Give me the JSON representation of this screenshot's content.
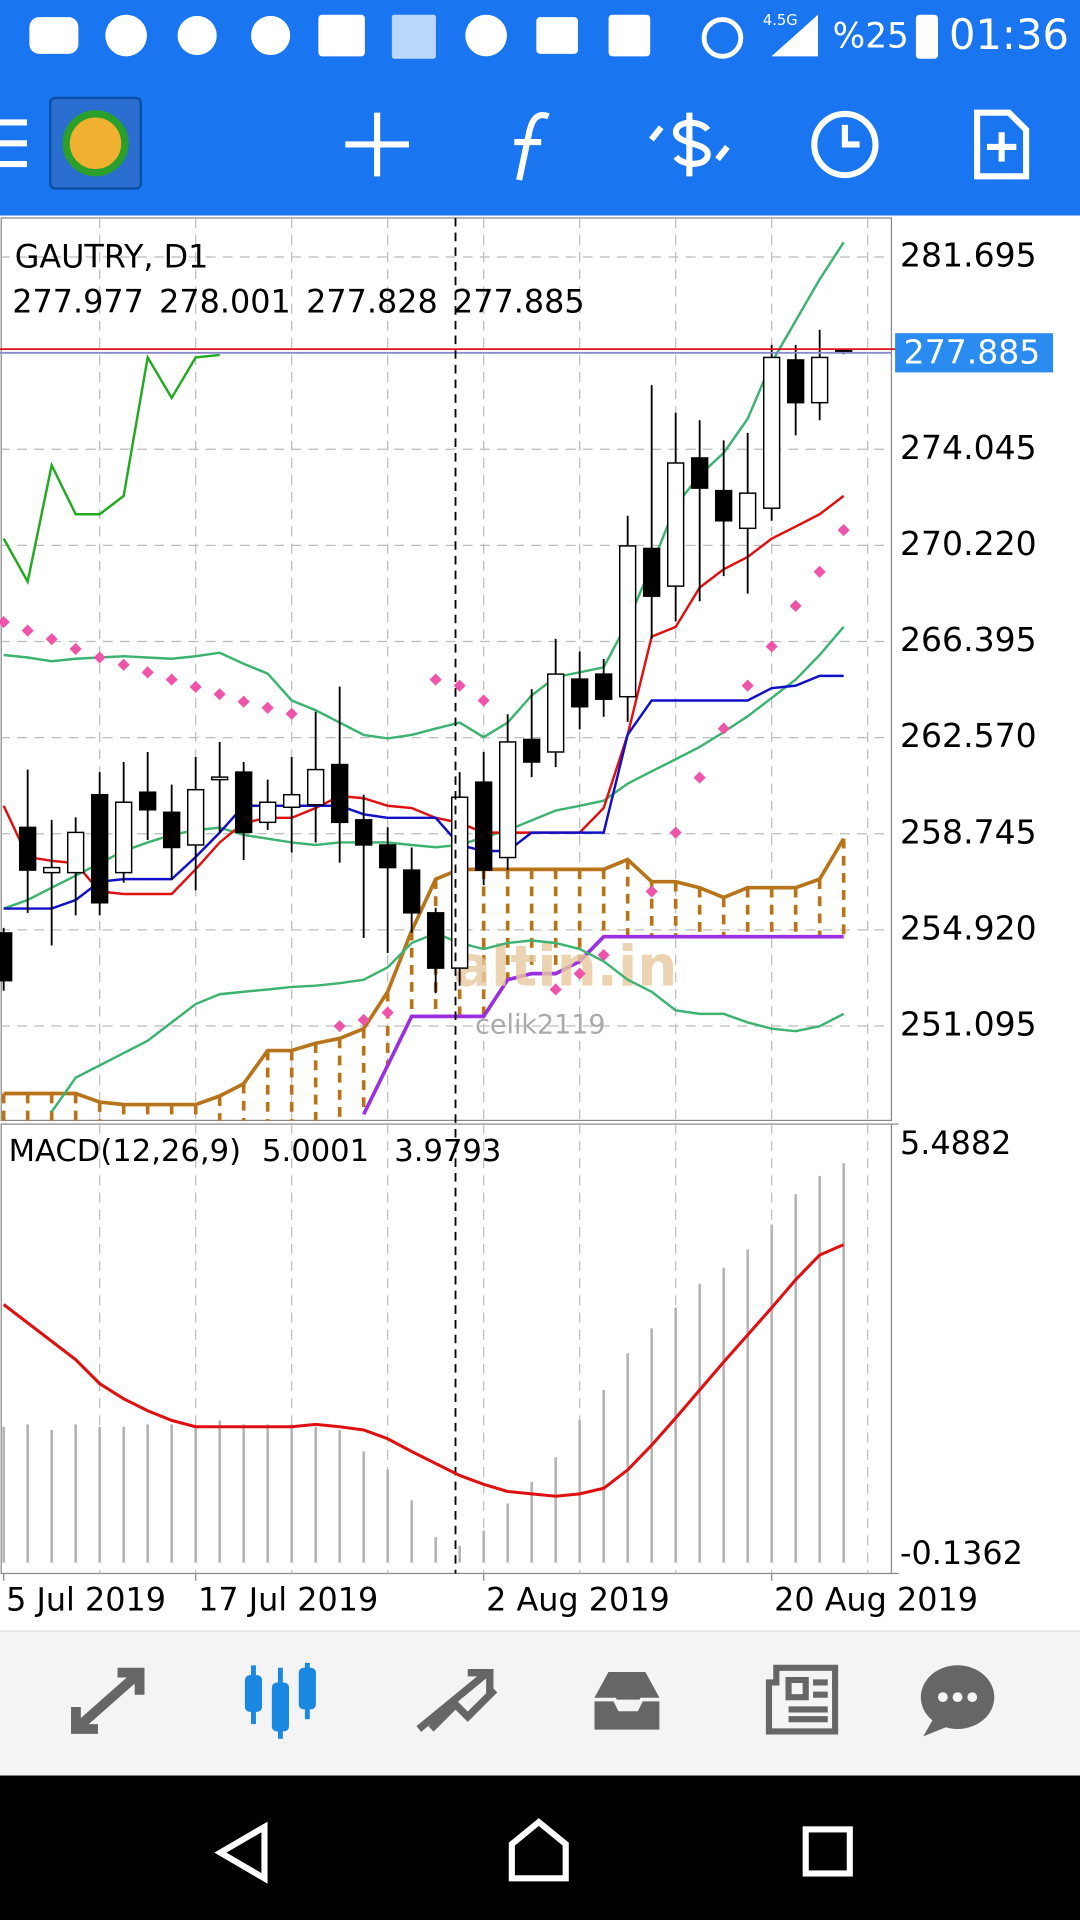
{
  "status_bar": {
    "network": "4.5G",
    "battery": "%25",
    "time": "01:36"
  },
  "chart": {
    "symbol": "GAUTRY, D1",
    "categories": [
      "5 Jul 2019",
      null,
      null,
      null,
      null,
      null,
      null,
      null,
      "17 Jul 2019",
      null,
      null,
      null,
      null,
      null,
      null,
      null,
      null,
      null,
      null,
      null,
      "2 Aug 2019",
      null,
      null,
      null,
      null,
      null,
      null,
      null,
      null,
      null,
      null,
      null,
      "20 Aug 2019",
      null,
      null,
      null
    ],
    "ylim": [
      247.34,
      283.25
    ],
    "yticks": [
      281.695,
      274.045,
      {
        "value": 270.22,
        "label": "270.220"
      },
      266.395,
      {
        "value": 262.57,
        "label": "262.570"
      },
      258.745,
      {
        "value": 254.92,
        "label": "254.920"
      },
      251.095
    ],
    "candles": {
      "bull_color": "#ffffff",
      "bear_color": "#000000",
      "open": [
        254.8,
        259.0,
        257.2,
        257.2,
        260.3,
        257.2,
        260.4,
        259.6,
        258.3,
        260.9,
        261.2,
        259.2,
        259.8,
        259.9,
        261.5,
        259.3,
        258.3,
        257.3,
        255.6,
        253.4,
        260.8,
        257.8,
        262.5,
        262.0,
        264.9,
        265.1,
        264.2,
        270.1,
        268.6,
        273.7,
        272.4,
        270.9,
        271.7,
        277.6,
        275.9,
        277.977
      ],
      "high": [
        255.0,
        261.3,
        259.3,
        259.4,
        261.2,
        261.6,
        262.0,
        260.7,
        261.8,
        262.4,
        261.6,
        260.9,
        261.8,
        263.6,
        264.6,
        260.3,
        259.0,
        258.2,
        255.8,
        261.2,
        262.0,
        263.5,
        264.5,
        266.5,
        266.0,
        265.7,
        271.4,
        276.6,
        275.5,
        275.2,
        274.4,
        274.7,
        278.2,
        278.2,
        278.8,
        278.001
      ],
      "low": [
        252.5,
        255.6,
        254.3,
        255.5,
        255.5,
        256.8,
        258.5,
        256.9,
        256.5,
        258.8,
        257.7,
        258.9,
        258.0,
        258.4,
        257.6,
        254.6,
        254.0,
        254.8,
        252.4,
        252.7,
        256.7,
        257.3,
        261.0,
        261.4,
        262.9,
        263.4,
        263.2,
        266.5,
        267.2,
        268.0,
        269.0,
        268.3,
        271.2,
        274.6,
        275.2,
        277.828
      ],
      "close": [
        252.9,
        257.3,
        257.4,
        258.8,
        256.0,
        260.0,
        259.7,
        258.2,
        260.5,
        261.0,
        258.8,
        260.0,
        260.3,
        261.3,
        259.2,
        258.3,
        257.4,
        255.6,
        253.4,
        260.2,
        257.3,
        262.4,
        261.6,
        265.1,
        263.8,
        264.1,
        270.2,
        268.2,
        273.5,
        272.5,
        271.2,
        272.3,
        277.7,
        275.9,
        277.7,
        277.885
      ]
    },
    "lines": [
      {
        "color": "#3cb371",
        "values": [
          265.86,
          265.76,
          265.61,
          265.71,
          265.76,
          265.81,
          265.76,
          265.71,
          265.81,
          265.95,
          265.51,
          265.12,
          264.05,
          263.66,
          263.17,
          262.68,
          262.54,
          262.68,
          262.93,
          263.17,
          262.59,
          263.17,
          264.25,
          264.98,
          265.17,
          265.37,
          267.17,
          269.42,
          271.8,
          273.02,
          273.9,
          275.26,
          277.5,
          279.16,
          280.81,
          282.28
        ]
      },
      {
        "color": "#3cb371",
        "values": [
          255.77,
          256.11,
          256.6,
          257.08,
          257.57,
          258.06,
          258.4,
          258.7,
          258.89,
          258.99,
          258.7,
          258.55,
          258.4,
          258.3,
          258.4,
          258.4,
          258.4,
          258.3,
          258.21,
          258.3,
          258.6,
          258.89,
          259.28,
          259.67,
          259.86,
          260.06,
          260.74,
          261.23,
          261.71,
          262.2,
          262.79,
          263.42,
          264.15,
          264.88,
          265.86,
          266.98
        ]
      },
      {
        "color": "#3cb371",
        "values": [
          null,
          null,
          247.68,
          249.04,
          249.53,
          250.02,
          250.51,
          251.24,
          251.97,
          252.36,
          252.46,
          252.55,
          252.65,
          252.7,
          252.8,
          252.94,
          253.43,
          254.4,
          254.79,
          254.4,
          254.16,
          254.4,
          254.5,
          254.4,
          254.16,
          253.67,
          252.94,
          252.46,
          251.72,
          251.58,
          251.58,
          251.24,
          250.99,
          250.89,
          251.09,
          251.58
        ]
      },
      {
        "color": "#e01010",
        "values": [
          259.86,
          257.82,
          257.67,
          257.57,
          256.45,
          256.35,
          256.35,
          256.35,
          257.33,
          258.4,
          259.18,
          259.38,
          259.38,
          259.77,
          260.25,
          260.16,
          259.86,
          259.77,
          259.38,
          259.18,
          258.79,
          258.79,
          258.79,
          258.79,
          258.79,
          259.77,
          262.69,
          266.59,
          266.98,
          268.54,
          269.27,
          269.76,
          270.49,
          270.97,
          271.46,
          272.19
        ]
      },
      {
        "color": "#1010c8",
        "values": [
          255.77,
          255.77,
          255.77,
          256.11,
          256.84,
          256.94,
          256.94,
          256.94,
          257.82,
          258.79,
          259.86,
          259.86,
          259.86,
          259.86,
          259.86,
          259.52,
          259.38,
          259.38,
          259.38,
          258.3,
          258.06,
          258.06,
          258.79,
          258.79,
          258.79,
          258.79,
          262.69,
          264.05,
          264.05,
          264.05,
          264.05,
          264.05,
          264.54,
          264.64,
          265.03,
          265.03
        ]
      },
      {
        "color": "#22aa22",
        "values": [
          270.49,
          268.78,
          273.41,
          271.46,
          271.46,
          272.19,
          277.7,
          276.09,
          277.7,
          277.8,
          null,
          null,
          null,
          null,
          null,
          null,
          null,
          null,
          null,
          null,
          null,
          null,
          null,
          null,
          null,
          null,
          null,
          null,
          null,
          null,
          null,
          null,
          null,
          null,
          null,
          null
        ]
      }
    ],
    "cloud": {
      "color": "#b8741a",
      "span_a": [
        248.41,
        248.41,
        248.41,
        248.41,
        248.07,
        247.97,
        247.97,
        247.97,
        247.97,
        248.31,
        248.8,
        250.12,
        250.12,
        250.41,
        250.6,
        250.99,
        252.46,
        254.89,
        256.94,
        257.33,
        257.33,
        257.33,
        257.33,
        257.33,
        257.33,
        257.33,
        257.72,
        256.84,
        256.84,
        256.6,
        256.21,
        256.6,
        256.6,
        256.6,
        256.94,
        258.55
      ],
      "span_b_color": "#9b30e0",
      "span_b": [
        null,
        null,
        null,
        null,
        null,
        null,
        null,
        null,
        null,
        null,
        null,
        null,
        null,
        null,
        null,
        247.58,
        249.53,
        251.48,
        251.48,
        251.48,
        251.48,
        252.94,
        253.18,
        253.18,
        253.67,
        254.65,
        254.65,
        254.65,
        254.65,
        254.65,
        254.65,
        254.65,
        254.65,
        254.65,
        254.65,
        254.65
      ]
    },
    "sar": {
      "color": "#ee55aa",
      "values": [
        267.17,
        266.83,
        266.49,
        266.1,
        265.76,
        265.47,
        265.17,
        264.88,
        264.59,
        264.3,
        264.0,
        263.76,
        263.52,
        null,
        251.09,
        251.34,
        251.63,
        null,
        264.88,
        264.64,
        264.05,
        null,
        null,
        252.55,
        253.18,
        253.92,
        null,
        256.45,
        258.79,
        260.98,
        262.93,
        264.64,
        266.2,
        267.81,
        269.17,
        270.83
      ]
    },
    "watermark": "altin.in",
    "watermark_user": "celik2119",
    "macd": {
      "label": "MACD(12,26,9)",
      "ylim": [
        -0.1362,
        5.4882
      ],
      "yticks": [
        5.4882,
        -0.1362
      ],
      "histogram_color": "#b0b0b0",
      "signal_color": "#e01010",
      "histogram": [
        1.7,
        1.73,
        1.66,
        1.73,
        1.7,
        1.7,
        1.73,
        1.73,
        1.7,
        1.78,
        1.73,
        1.73,
        1.73,
        1.7,
        1.66,
        1.39,
        1.16,
        0.78,
        0.32,
        0.21,
        0.4,
        0.74,
        1.01,
        1.32,
        1.78,
        2.16,
        2.62,
        2.93,
        3.19,
        3.49,
        3.69,
        3.92,
        4.23,
        4.61,
        4.84,
        5.0001
      ],
      "signal": [
        3.23,
        3.0,
        2.77,
        2.54,
        2.24,
        2.05,
        1.9,
        1.78,
        1.7,
        1.7,
        1.7,
        1.7,
        1.7,
        1.73,
        1.7,
        1.66,
        1.55,
        1.39,
        1.24,
        1.09,
        0.98,
        0.89,
        0.86,
        0.83,
        0.86,
        0.93,
        1.16,
        1.47,
        1.81,
        2.16,
        2.51,
        2.85,
        3.19,
        3.54,
        3.85,
        3.9793
      ]
    }
  }
}
